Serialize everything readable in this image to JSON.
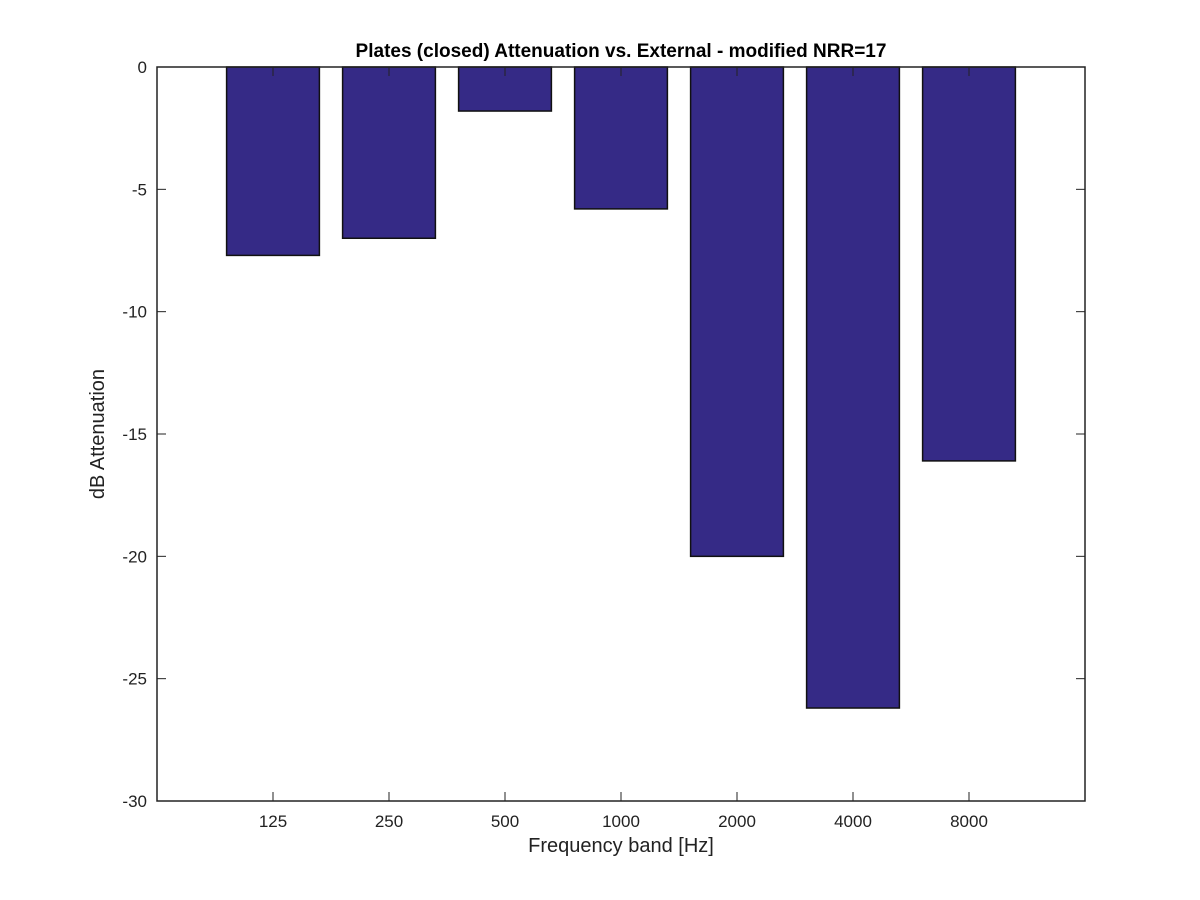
{
  "chart_data": {
    "type": "bar",
    "title": "Plates (closed) Attenuation vs. External - modified NRR=17",
    "xlabel": "Frequency band [Hz]",
    "ylabel": "dB Attenuation",
    "categories": [
      "125",
      "250",
      "500",
      "1000",
      "2000",
      "4000",
      "8000"
    ],
    "values": [
      -7.7,
      -7.0,
      -1.8,
      -5.8,
      -20.0,
      -26.2,
      -16.1
    ],
    "ylim": [
      -30,
      0
    ],
    "yticks": [
      0,
      -5,
      -10,
      -15,
      -20,
      -25,
      -30
    ],
    "grid": false,
    "legend": "none",
    "bar_color": "#352a86",
    "edge_color": "#111111"
  }
}
